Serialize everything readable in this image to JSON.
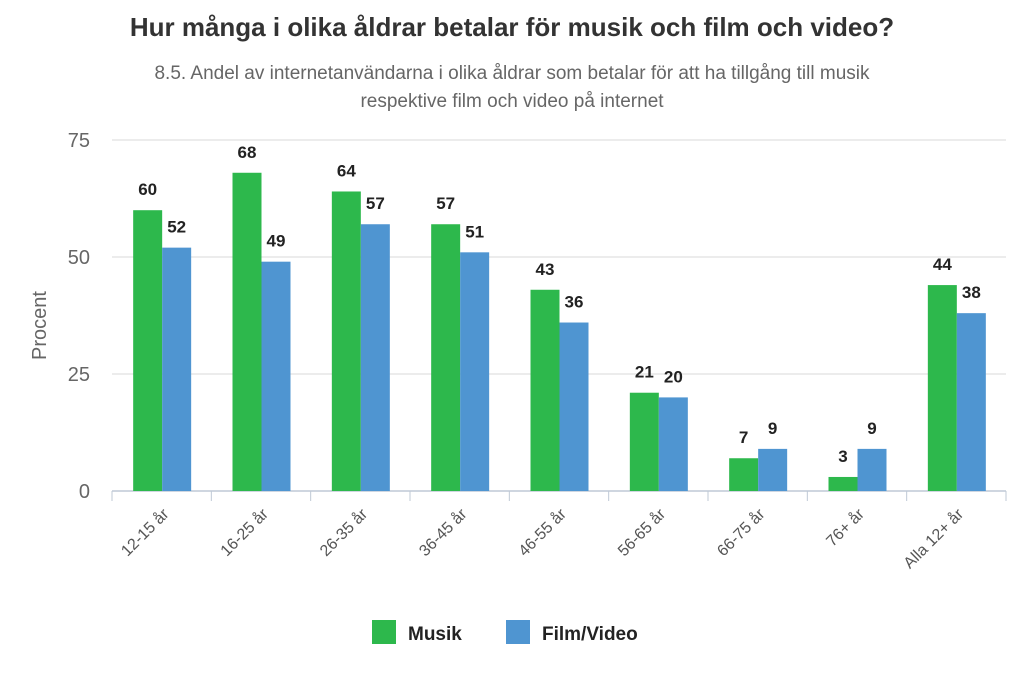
{
  "chart_data": {
    "type": "bar",
    "title": "Hur många i olika åldrar betalar för musik och film och video?",
    "subtitle": "8.5. Andel av internetanvändarna i olika åldrar som betalar för att ha tillgång till musik respektive film och video på internet",
    "ylabel": "Procent",
    "xlabel": "",
    "ylim": [
      0,
      75
    ],
    "yticks": [
      "0",
      "25",
      "50",
      "75"
    ],
    "grid": true,
    "legend_position": "bottom",
    "categories": [
      "12-15 år",
      "16-25 år",
      "26-35 år",
      "36-45 år",
      "46-55 år",
      "56-65 år",
      "66-75 år",
      "76+ år",
      "Alla 12+ år"
    ],
    "series": [
      {
        "name": "Musik",
        "color": "#2db84c",
        "values": [
          60,
          68,
          64,
          57,
          43,
          21,
          7,
          3,
          44
        ]
      },
      {
        "name": "Film/Video",
        "color": "#4f95d1",
        "values": [
          52,
          49,
          57,
          51,
          36,
          20,
          9,
          9,
          38
        ]
      }
    ]
  }
}
